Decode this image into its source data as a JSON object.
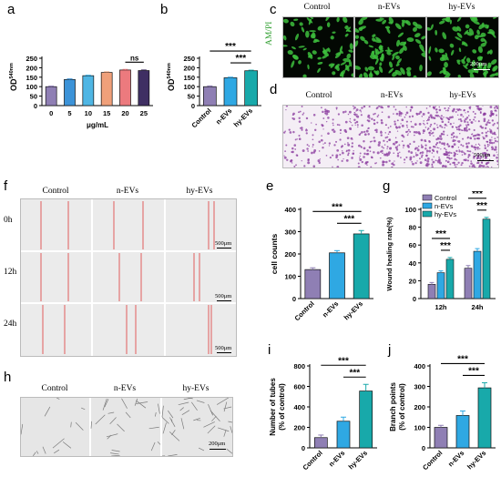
{
  "panels": {
    "a": "a",
    "b": "b",
    "c": "c",
    "d": "d",
    "e": "e",
    "f": "f",
    "g": "g",
    "h": "h",
    "i": "i",
    "j": "j"
  },
  "image_labels": {
    "c": [
      "Control",
      "n-EVs",
      "hy-EVs"
    ],
    "c_side": "AM/PI",
    "d": [
      "Control",
      "n-EVs",
      "hy-EVs"
    ],
    "f": [
      "Control",
      "n-EVs",
      "hy-EVs"
    ],
    "f_rows": [
      "0h",
      "12h",
      "24h"
    ],
    "h": [
      "Control",
      "n-EVs",
      "hy-EVs"
    ]
  },
  "scale_bars": {
    "c": "200μm",
    "d": "500μm",
    "f0": "500μm",
    "f1": "500μm",
    "f2": "500μm",
    "h": "200μm"
  },
  "colors": {
    "a": [
      "#8F7FB4",
      "#3C93D8",
      "#4FB6E4",
      "#F0A07A",
      "#EC7A7E",
      "#3F2F63"
    ],
    "three": [
      "#8F7FB4",
      "#2FA8E3",
      "#18A9AA"
    ],
    "fluor": "#3DBE3D"
  },
  "chart_data": [
    {
      "id": "a",
      "type": "bar",
      "categories": [
        "0",
        "5",
        "10",
        "15",
        "20",
        "25"
      ],
      "values": [
        100,
        138,
        158,
        175,
        188,
        185
      ],
      "errors": [
        3,
        3,
        3,
        3,
        3,
        3
      ],
      "ylabel_main": "OD",
      "ylabel_sup": "540nm",
      "xlabel": "μg/mL",
      "ylim": [
        0,
        250
      ],
      "yticks": [
        "0",
        "50",
        "100",
        "150",
        "200",
        "250"
      ],
      "annotations": [
        {
          "text": "ns",
          "from": 4,
          "to": 5
        }
      ]
    },
    {
      "id": "b",
      "type": "bar",
      "categories": [
        "Control",
        "n-EVs",
        "hy-EVs"
      ],
      "values": [
        100,
        147,
        184
      ],
      "errors": [
        4,
        3,
        3
      ],
      "ylabel_main": "OD",
      "ylabel_sup": "540nm",
      "ylim": [
        0,
        250
      ],
      "yticks": [
        "0",
        "50",
        "100",
        "150",
        "200",
        "250"
      ],
      "annotations": [
        {
          "text": "***",
          "from": 0,
          "to": 2
        },
        {
          "text": "***",
          "from": 1,
          "to": 2
        }
      ]
    },
    {
      "id": "e",
      "type": "bar",
      "categories": [
        "Control",
        "n-EVs",
        "hy-EVs"
      ],
      "values": [
        130,
        205,
        290
      ],
      "errors": [
        8,
        10,
        15
      ],
      "ylabel": "cell counts",
      "ylim": [
        0,
        400
      ],
      "yticks": [
        "0",
        "100",
        "200",
        "300",
        "400"
      ],
      "annotations": [
        {
          "text": "***",
          "from": 0,
          "to": 2
        },
        {
          "text": "***",
          "from": 1,
          "to": 2
        }
      ]
    },
    {
      "id": "g",
      "type": "bar",
      "categories": [
        "12h",
        "24h"
      ],
      "series": [
        {
          "name": "Control",
          "values": [
            16,
            34
          ],
          "errors": [
            2,
            3
          ]
        },
        {
          "name": "n-EVs",
          "values": [
            29,
            53
          ],
          "errors": [
            2,
            3
          ]
        },
        {
          "name": "hy-EVs",
          "values": [
            44,
            89
          ],
          "errors": [
            2,
            2
          ]
        }
      ],
      "ylabel": "Wound healing rate(%)",
      "ylim": [
        0,
        100
      ],
      "yticks": [
        "0",
        "20",
        "40",
        "60",
        "80",
        "100"
      ],
      "legend": "top-left",
      "annotations": [
        {
          "text": "***",
          "group": 0,
          "from": 0,
          "to": 2
        },
        {
          "text": "***",
          "group": 0,
          "from": 1,
          "to": 2
        },
        {
          "text": "***",
          "group": 1,
          "from": 0,
          "to": 2
        },
        {
          "text": "***",
          "group": 1,
          "from": 1,
          "to": 2
        }
      ]
    },
    {
      "id": "i",
      "type": "bar",
      "categories": [
        "Control",
        "n-EVs",
        "hy-EVs"
      ],
      "values": [
        100,
        260,
        555
      ],
      "errors": [
        25,
        40,
        65
      ],
      "ylabel_lines": [
        "Number of tubes",
        "(% of control)"
      ],
      "ylim": [
        0,
        800
      ],
      "yticks": [
        "0",
        "200",
        "400",
        "600",
        "800"
      ],
      "annotations": [
        {
          "text": "***",
          "from": 0,
          "to": 2
        },
        {
          "text": "***",
          "from": 1,
          "to": 2
        }
      ]
    },
    {
      "id": "j",
      "type": "bar",
      "categories": [
        "Control",
        "n-EVs",
        "hy-EVs"
      ],
      "values": [
        100,
        158,
        293
      ],
      "errors": [
        10,
        22,
        25
      ],
      "ylabel_lines": [
        "Branch points",
        "(% of control)"
      ],
      "ylim": [
        0,
        400
      ],
      "yticks": [
        "0",
        "100",
        "200",
        "300",
        "400"
      ],
      "annotations": [
        {
          "text": "***",
          "from": 0,
          "to": 2
        },
        {
          "text": "***",
          "from": 1,
          "to": 2
        }
      ]
    }
  ]
}
